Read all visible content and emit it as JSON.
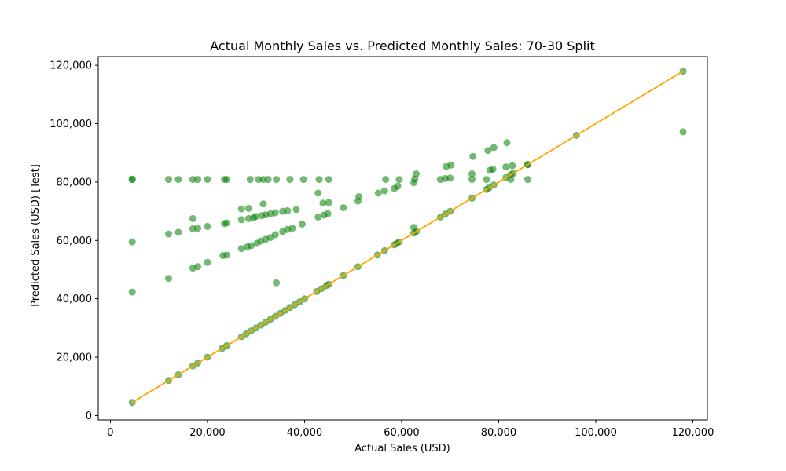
{
  "chart_data": {
    "type": "scatter",
    "title": "Actual Monthly Sales vs. Predicted Monthly Sales: 70-30 Split",
    "xlabel": "Actual Sales (USD)",
    "ylabel": "Predicted Sales (USD) [Test]",
    "xlim": [
      -2500,
      123000
    ],
    "ylim": [
      -1500,
      123000
    ],
    "x_ticks": [
      0,
      20000,
      40000,
      60000,
      80000,
      100000,
      120000
    ],
    "x_tick_labels": [
      "0",
      "20,000",
      "40,000",
      "60,000",
      "80,000",
      "100,000",
      "120,000"
    ],
    "y_ticks": [
      0,
      20000,
      40000,
      60000,
      80000,
      100000,
      120000
    ],
    "y_tick_labels": [
      "0",
      "20,000",
      "40,000",
      "60,000",
      "80,000",
      "100,000",
      "120,000"
    ],
    "grid": false,
    "point_color": "#008000",
    "line_color": "#ffa500",
    "series": [
      {
        "type": "scatter",
        "points": [
          [
            4500,
            4500
          ],
          [
            4500,
            42300
          ],
          [
            4500,
            59500
          ],
          [
            4500,
            80900
          ],
          [
            4500,
            81000
          ],
          [
            12000,
            12000
          ],
          [
            12000,
            47000
          ],
          [
            12000,
            62200
          ],
          [
            12000,
            80900
          ],
          [
            14000,
            14000
          ],
          [
            14000,
            62800
          ],
          [
            14000,
            80900
          ],
          [
            17000,
            17000
          ],
          [
            17000,
            50500
          ],
          [
            17000,
            64000
          ],
          [
            17000,
            67500
          ],
          [
            17000,
            80900
          ],
          [
            18000,
            18000
          ],
          [
            18000,
            51000
          ],
          [
            18000,
            64200
          ],
          [
            18000,
            80900
          ],
          [
            20000,
            20000
          ],
          [
            20000,
            52500
          ],
          [
            20000,
            64800
          ],
          [
            20000,
            80900
          ],
          [
            23000,
            23000
          ],
          [
            23200,
            54800
          ],
          [
            23500,
            65800
          ],
          [
            23500,
            80900
          ],
          [
            24000,
            24000
          ],
          [
            24000,
            55000
          ],
          [
            24000,
            66000
          ],
          [
            24000,
            80900
          ],
          [
            27000,
            27000
          ],
          [
            27000,
            57200
          ],
          [
            27000,
            67100
          ],
          [
            27000,
            70800
          ],
          [
            28000,
            28000
          ],
          [
            28200,
            57800
          ],
          [
            28500,
            67500
          ],
          [
            28500,
            71000
          ],
          [
            28800,
            80900
          ],
          [
            29000,
            29000
          ],
          [
            29000,
            58200
          ],
          [
            29500,
            67800
          ],
          [
            30000,
            30000
          ],
          [
            30200,
            59000
          ],
          [
            30000,
            68200
          ],
          [
            30500,
            80900
          ],
          [
            31000,
            31000
          ],
          [
            31000,
            59800
          ],
          [
            31200,
            68500
          ],
          [
            31500,
            72500
          ],
          [
            31500,
            80900
          ],
          [
            32000,
            32000
          ],
          [
            32000,
            60400
          ],
          [
            32000,
            68800
          ],
          [
            32500,
            80900
          ],
          [
            33000,
            33000
          ],
          [
            33000,
            61000
          ],
          [
            33000,
            69100
          ],
          [
            34000,
            34000
          ],
          [
            34000,
            62000
          ],
          [
            34200,
            45500
          ],
          [
            34000,
            69500
          ],
          [
            34200,
            80900
          ],
          [
            35000,
            35000
          ],
          [
            35500,
            63000
          ],
          [
            35500,
            70000
          ],
          [
            36000,
            36000
          ],
          [
            36500,
            63800
          ],
          [
            36500,
            70200
          ],
          [
            37000,
            80900
          ],
          [
            37000,
            37000
          ],
          [
            37500,
            64200
          ],
          [
            38000,
            38000
          ],
          [
            38300,
            70600
          ],
          [
            39000,
            39000
          ],
          [
            39500,
            65600
          ],
          [
            39800,
            80900
          ],
          [
            40000,
            40000
          ],
          [
            42500,
            42500
          ],
          [
            42800,
            68000
          ],
          [
            42800,
            76200
          ],
          [
            43000,
            80900
          ],
          [
            43500,
            43500
          ],
          [
            43800,
            72800
          ],
          [
            44000,
            68700
          ],
          [
            44500,
            44500
          ],
          [
            44800,
            69200
          ],
          [
            45000,
            73000
          ],
          [
            45000,
            80900
          ],
          [
            45000,
            45000
          ],
          [
            48000,
            48000
          ],
          [
            48000,
            71200
          ],
          [
            51000,
            51000
          ],
          [
            51000,
            73500
          ],
          [
            51200,
            75000
          ],
          [
            55000,
            55000
          ],
          [
            55200,
            76200
          ],
          [
            56500,
            56500
          ],
          [
            56500,
            77000
          ],
          [
            56700,
            80900
          ],
          [
            58500,
            58500
          ],
          [
            58500,
            77800
          ],
          [
            59000,
            59000
          ],
          [
            59200,
            78600
          ],
          [
            59500,
            80900
          ],
          [
            59500,
            59500
          ],
          [
            62500,
            62500
          ],
          [
            62500,
            64500
          ],
          [
            62500,
            79800
          ],
          [
            62700,
            81000
          ],
          [
            63000,
            63000
          ],
          [
            63000,
            82800
          ],
          [
            68000,
            68000
          ],
          [
            68000,
            80900
          ],
          [
            69000,
            69000
          ],
          [
            69000,
            81200
          ],
          [
            69200,
            85300
          ],
          [
            70000,
            70000
          ],
          [
            70000,
            81400
          ],
          [
            70200,
            85800
          ],
          [
            74500,
            74500
          ],
          [
            74500,
            80900
          ],
          [
            74500,
            82800
          ],
          [
            74700,
            88800
          ],
          [
            77500,
            77500
          ],
          [
            77500,
            80900
          ],
          [
            77800,
            90800
          ],
          [
            78000,
            78000
          ],
          [
            78200,
            84000
          ],
          [
            79000,
            79000
          ],
          [
            78800,
            84400
          ],
          [
            79000,
            91800
          ],
          [
            81500,
            81500
          ],
          [
            81500,
            85200
          ],
          [
            81700,
            93500
          ],
          [
            82500,
            82500
          ],
          [
            82500,
            80900
          ],
          [
            82800,
            85600
          ],
          [
            83000,
            83000
          ],
          [
            86000,
            86000
          ],
          [
            86000,
            80900
          ],
          [
            86000,
            86000
          ],
          [
            96000,
            96000
          ],
          [
            118000,
            118000
          ],
          [
            118000,
            97200
          ]
        ]
      },
      {
        "type": "line",
        "points": [
          [
            4500,
            4500
          ],
          [
            118000,
            118000
          ]
        ]
      }
    ]
  }
}
